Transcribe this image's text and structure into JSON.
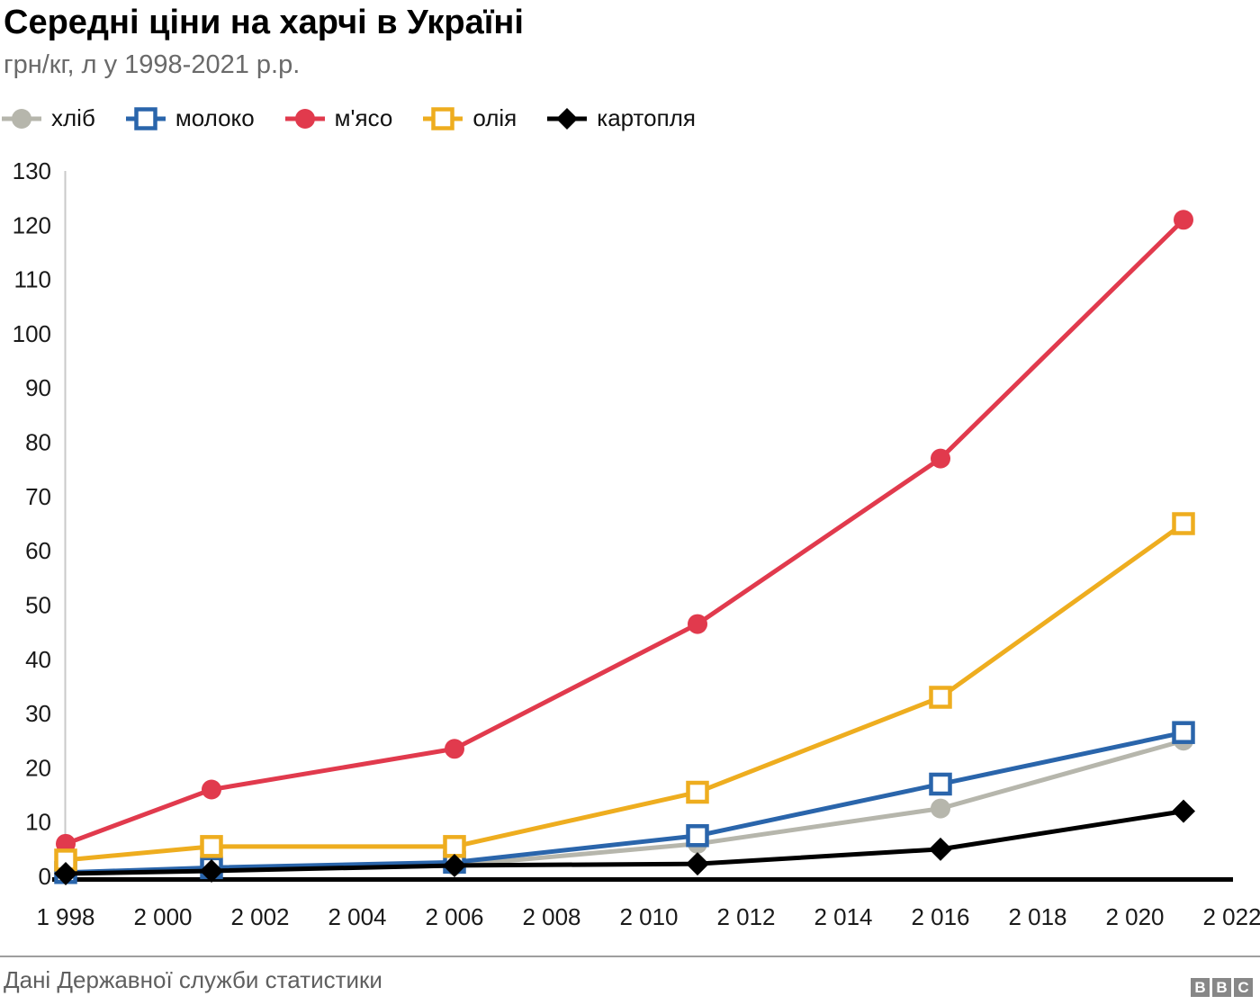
{
  "header": {
    "title": "Середні ціни на харчі в Україні",
    "subtitle": "грн/кг, л у 1998-2021 р.р."
  },
  "chart_data": {
    "type": "line",
    "title": "Середні ціни на харчі в Україні",
    "subtitle": "грн/кг, л у 1998-2021 р.р.",
    "x": [
      1998,
      2001,
      2006,
      2011,
      2016,
      2021
    ],
    "series": [
      {
        "id": "bread",
        "name": "хліб",
        "color": "#b6b6ac",
        "marker": "circle-filled",
        "values": [
          0.6,
          1.2,
          2.0,
          6.0,
          12.5,
          25
        ]
      },
      {
        "id": "milk",
        "name": "молоко",
        "color": "#2a65ab",
        "marker": "square-open",
        "values": [
          0.7,
          1.6,
          2.6,
          7.5,
          17,
          26.5
        ]
      },
      {
        "id": "meat",
        "name": "м'ясо",
        "color": "#e13a4d",
        "marker": "circle-filled",
        "values": [
          6,
          16,
          23.5,
          46.5,
          77,
          121
        ]
      },
      {
        "id": "oil",
        "name": "олія",
        "color": "#eead1f",
        "marker": "square-open",
        "values": [
          3,
          5.5,
          5.5,
          15.5,
          33,
          65
        ]
      },
      {
        "id": "potato",
        "name": "картопля",
        "color": "#000000",
        "marker": "diamond-filled",
        "values": [
          0.5,
          1.0,
          2.0,
          2.3,
          5,
          12
        ]
      }
    ],
    "xlim": [
      1998,
      2022
    ],
    "ylim": [
      0,
      130
    ],
    "y_ticks": [
      0,
      10,
      20,
      30,
      40,
      50,
      60,
      70,
      80,
      90,
      100,
      110,
      120,
      130
    ],
    "x_ticks": [
      1998,
      2000,
      2002,
      2004,
      2006,
      2008,
      2010,
      2012,
      2014,
      2016,
      2018,
      2020,
      2022
    ],
    "x_tick_labels": [
      "1 998",
      "2 000",
      "2 002",
      "2 004",
      "2 006",
      "2 008",
      "2 010",
      "2 012",
      "2 014",
      "2 016",
      "2 018",
      "2 020",
      "2 022"
    ],
    "grid": false,
    "legend_position": "top",
    "axis_color": "#c9c9c9",
    "baseline_color": "#000000"
  },
  "footer": {
    "source": "Дані Державної служби статистики",
    "logo_letters": [
      "B",
      "B",
      "C"
    ]
  }
}
